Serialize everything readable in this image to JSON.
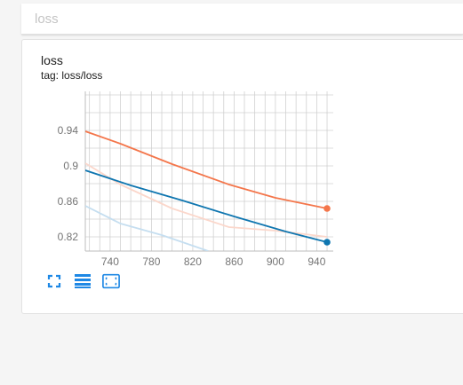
{
  "header": {
    "search_placeholder": "loss"
  },
  "card": {
    "title": "loss",
    "tag": "tag: loss/loss"
  },
  "colors": {
    "orange": "#f4764b",
    "orange_smoothed_faint": "#fbd7cb",
    "blue": "#0f76b0",
    "blue_faint": "#c5def0",
    "grid": "#d0d0d0"
  },
  "toolbar": {
    "icons": [
      "fullscreen-icon",
      "toggle-lines-icon",
      "fit-domain-icon"
    ]
  },
  "chart_data": {
    "type": "line",
    "title": "",
    "xlabel": "",
    "ylabel": "",
    "xlim": [
      716,
      956
    ],
    "ylim": [
      0.804,
      0.984
    ],
    "x_ticks": [
      740,
      780,
      820,
      860,
      900,
      940
    ],
    "x_tick_labels": [
      "740",
      "780",
      "820",
      "860",
      "900",
      "940"
    ],
    "y_ticks": [
      0.82,
      0.86,
      0.9,
      0.94
    ],
    "y_tick_labels": [
      "0.82",
      "0.86",
      "0.9",
      "0.94"
    ],
    "grid": true,
    "series": [
      {
        "color": "#f4764b",
        "x": [
          716,
          750,
          800,
          855,
          900,
          950
        ],
        "y": [
          0.939,
          0.925,
          0.902,
          0.879,
          0.864,
          0.852
        ],
        "end_marker": true
      },
      {
        "color": "#fbd7cb",
        "x": [
          716,
          750,
          800,
          855,
          900,
          950
        ],
        "y": [
          0.903,
          0.879,
          0.852,
          0.831,
          0.827,
          0.82
        ]
      },
      {
        "color": "#0f76b0",
        "x": [
          716,
          760,
          810,
          860,
          910,
          950
        ],
        "y": [
          0.895,
          0.878,
          0.861,
          0.843,
          0.826,
          0.814
        ],
        "end_marker": true
      },
      {
        "color": "#c5def0",
        "x": [
          716,
          750,
          790,
          835
        ],
        "y": [
          0.855,
          0.835,
          0.822,
          0.804
        ]
      }
    ]
  }
}
